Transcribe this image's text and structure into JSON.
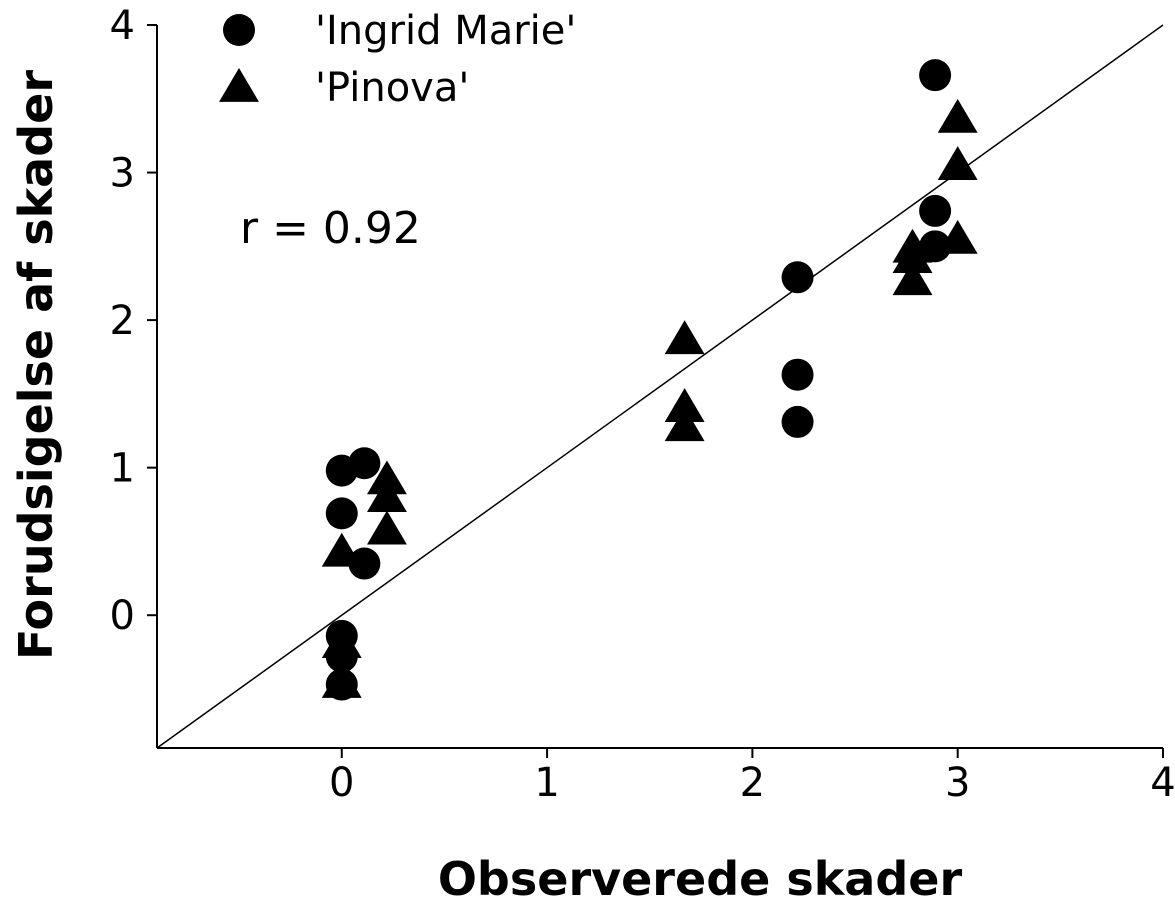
{
  "chart_data": {
    "type": "scatter",
    "title": "",
    "xlabel": "Observerede skader",
    "ylabel": "Forudsigelse af skader",
    "xlim": [
      -0.9,
      4
    ],
    "ylim": [
      -0.9,
      4
    ],
    "x_ticks": [
      0,
      1,
      2,
      3,
      4
    ],
    "y_ticks": [
      0,
      1,
      2,
      3,
      4
    ],
    "grid": false,
    "legend_position": "top-left",
    "annotation": "r = 0.92",
    "fit_line": {
      "x": [
        -0.9,
        4.0
      ],
      "y": [
        -0.9,
        4.0
      ]
    },
    "series": [
      {
        "name": "'Ingrid Marie'",
        "marker": "circle",
        "color": "#000000",
        "points": [
          {
            "x": 0.0,
            "y": 0.98
          },
          {
            "x": 0.11,
            "y": 1.03
          },
          {
            "x": 0.0,
            "y": 0.69
          },
          {
            "x": 0.11,
            "y": 0.35
          },
          {
            "x": 0.0,
            "y": -0.14
          },
          {
            "x": 0.0,
            "y": -0.28
          },
          {
            "x": 0.0,
            "y": -0.47
          },
          {
            "x": 2.22,
            "y": 2.29
          },
          {
            "x": 2.22,
            "y": 1.63
          },
          {
            "x": 2.22,
            "y": 1.31
          },
          {
            "x": 2.89,
            "y": 3.66
          },
          {
            "x": 2.89,
            "y": 2.74
          },
          {
            "x": 2.89,
            "y": 2.5
          }
        ]
      },
      {
        "name": "'Pinova'",
        "marker": "triangle",
        "color": "#000000",
        "points": [
          {
            "x": 0.22,
            "y": 0.92
          },
          {
            "x": 0.22,
            "y": 0.8
          },
          {
            "x": 0.22,
            "y": 0.58
          },
          {
            "x": 0.0,
            "y": 0.43
          },
          {
            "x": 0.0,
            "y": -0.19
          },
          {
            "x": 0.0,
            "y": -0.46
          },
          {
            "x": 1.67,
            "y": 1.87
          },
          {
            "x": 1.67,
            "y": 1.41
          },
          {
            "x": 1.67,
            "y": 1.28
          },
          {
            "x": 3.0,
            "y": 3.37
          },
          {
            "x": 3.0,
            "y": 3.05
          },
          {
            "x": 3.0,
            "y": 2.55
          },
          {
            "x": 2.78,
            "y": 2.49
          },
          {
            "x": 2.78,
            "y": 2.42
          },
          {
            "x": 2.78,
            "y": 2.27
          }
        ]
      }
    ]
  }
}
